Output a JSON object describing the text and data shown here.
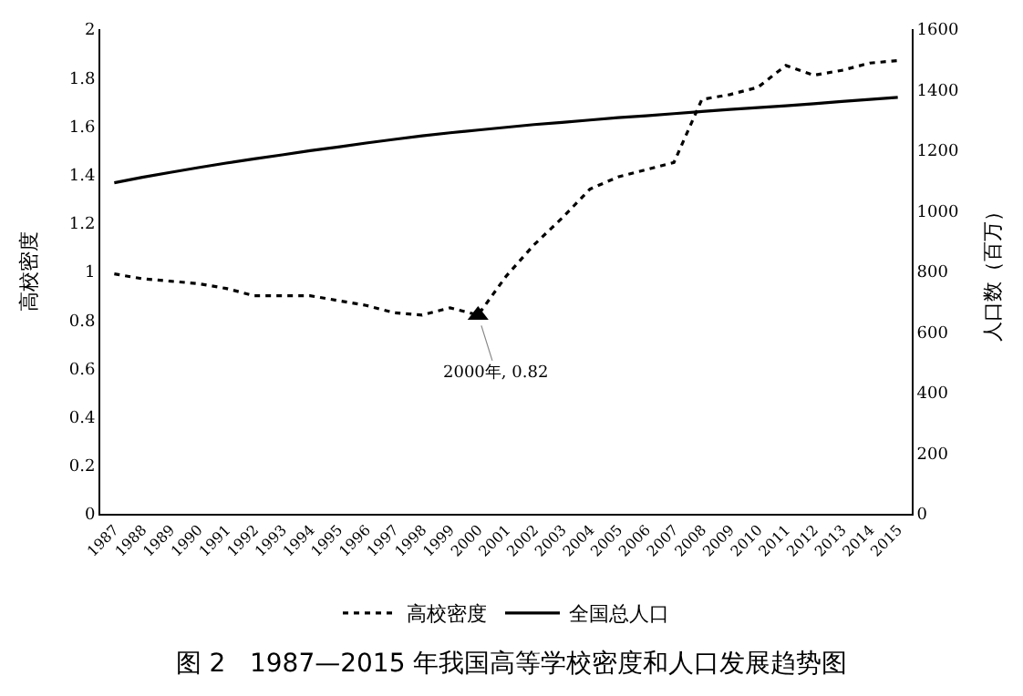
{
  "chart_data": {
    "type": "line",
    "title": "图 2   1987—2015 年我国高等学校密度和人口发展趋势图",
    "ylabel": "高校密度",
    "y2label": "人口数（百万）",
    "categories": [
      "1987",
      "1988",
      "1989",
      "1990",
      "1991",
      "1992",
      "1993",
      "1994",
      "1995",
      "1996",
      "1997",
      "1998",
      "1999",
      "2000",
      "2001",
      "2002",
      "2003",
      "2004",
      "2005",
      "2006",
      "2007",
      "2008",
      "2009",
      "2010",
      "2011",
      "2012",
      "2013",
      "2014",
      "2015"
    ],
    "series": [
      {
        "name": "高校密度",
        "color": "#000000",
        "line_style": "dotted",
        "values": [
          0.99,
          0.97,
          0.96,
          0.95,
          0.93,
          0.9,
          0.9,
          0.9,
          0.88,
          0.86,
          0.83,
          0.82,
          0.85,
          0.82,
          0.98,
          1.11,
          1.22,
          1.34,
          1.39,
          1.42,
          1.45,
          1.71,
          1.73,
          1.76,
          1.85,
          1.81,
          1.83,
          1.86,
          1.87
        ]
      },
      {
        "name": "全国总人口",
        "color": "#000000",
        "line_style": "solid",
        "axis": "y2",
        "values": [
          1093,
          1111,
          1127,
          1143,
          1158,
          1172,
          1185,
          1199,
          1211,
          1224,
          1236,
          1248,
          1258,
          1267,
          1276,
          1285,
          1292,
          1300,
          1308,
          1314,
          1321,
          1328,
          1335,
          1341,
          1347,
          1354,
          1361,
          1368,
          1375
        ]
      }
    ],
    "ylim": [
      0,
      2
    ],
    "yticks": [
      0,
      0.2,
      0.4,
      0.6,
      0.8,
      1,
      1.2,
      1.4,
      1.6,
      1.8,
      2
    ],
    "y2lim": [
      0,
      1600
    ],
    "y2ticks": [
      0,
      200,
      400,
      600,
      800,
      1000,
      1200,
      1400,
      1600
    ],
    "annotations": [
      {
        "text": "2000年, 0.82",
        "x": "2000",
        "y": 0.82
      }
    ],
    "legend": "bottom"
  }
}
